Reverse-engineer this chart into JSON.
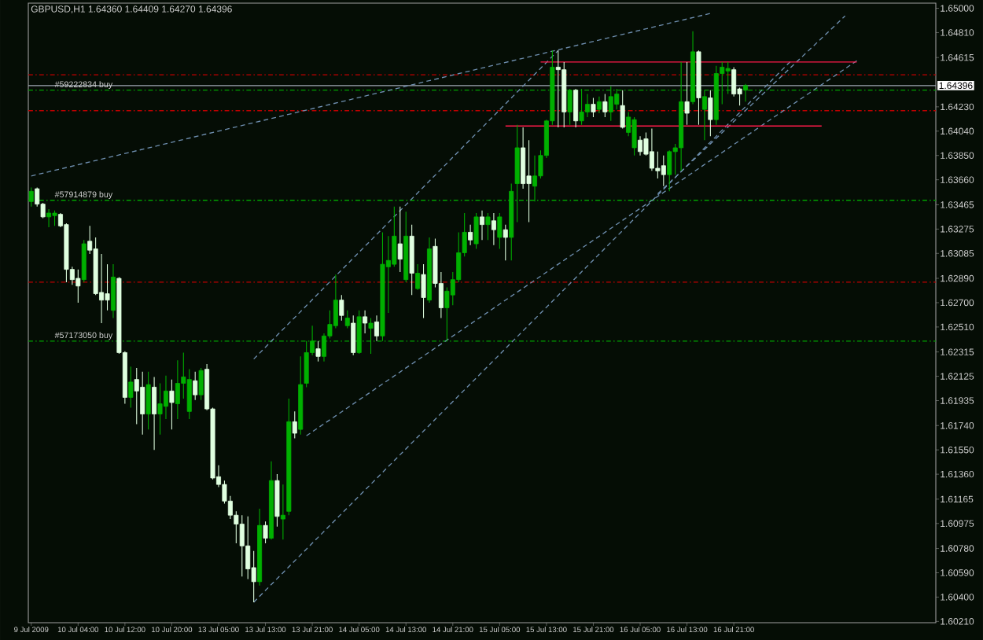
{
  "chart_data": {
    "type": "candlestick",
    "title": "GBPUSD,H1 1.64360 1.64409 1.64270 1.64396",
    "categories": [
      "9 Jul 2009",
      null,
      null,
      null,
      null,
      null,
      null,
      null,
      "10 Jul 04:00",
      null,
      null,
      null,
      null,
      null,
      null,
      null,
      "10 Jul 12:00",
      null,
      null,
      null,
      null,
      null,
      null,
      null,
      "10 Jul 20:00",
      null,
      null,
      null,
      null,
      null,
      null,
      null,
      "13 Jul 05:00",
      null,
      null,
      null,
      null,
      null,
      null,
      null,
      "13 Jul 13:00",
      null,
      null,
      null,
      null,
      null,
      null,
      null,
      "13 Jul 21:00",
      null,
      null,
      null,
      null,
      null,
      null,
      null,
      "14 Jul 05:00",
      null,
      null,
      null,
      null,
      null,
      null,
      null,
      "14 Jul 13:00",
      null,
      null,
      null,
      null,
      null,
      null,
      null,
      "14 Jul 21:00",
      null,
      null,
      null,
      null,
      null,
      null,
      null,
      "15 Jul 05:00",
      null,
      null,
      null,
      null,
      null,
      null,
      null,
      "15 Jul 13:00",
      null,
      null,
      null,
      null,
      null,
      null,
      null,
      "15 Jul 21:00",
      null,
      null,
      null,
      null,
      null,
      null,
      null,
      "16 Jul 05:00",
      null,
      null,
      null,
      null,
      null,
      null,
      null,
      "16 Jul 13:00",
      null,
      null,
      null,
      null,
      null,
      null,
      null,
      "16 Jul 21:00",
      null,
      null,
      null,
      null,
      null,
      null,
      null,
      null,
      null,
      null,
      null,
      null,
      null,
      null,
      null,
      null,
      null,
      null,
      null,
      null,
      null,
      null,
      null,
      null,
      null,
      null,
      null,
      null,
      null,
      null,
      null,
      null,
      null,
      null
    ],
    "ohlc": [
      [
        1.6349,
        1.636,
        1.6345,
        1.6357
      ],
      [
        1.6359,
        1.636,
        1.6345,
        1.6347
      ],
      [
        1.6347,
        1.6348,
        1.6336,
        1.6337
      ],
      [
        1.6337,
        1.6343,
        1.6329,
        1.634
      ],
      [
        1.6338,
        1.6342,
        1.633,
        1.634
      ],
      [
        1.6339,
        1.634,
        1.6329,
        1.633
      ],
      [
        1.6331,
        1.6332,
        1.6286,
        1.6296
      ],
      [
        1.6296,
        1.6298,
        1.6284,
        1.6288
      ],
      [
        1.6289,
        1.6296,
        1.627,
        1.6283
      ],
      [
        1.6288,
        1.6319,
        1.6286,
        1.6316
      ],
      [
        1.6318,
        1.633,
        1.6308,
        1.6311
      ],
      [
        1.6312,
        1.6321,
        1.6276,
        1.6277
      ],
      [
        1.6278,
        1.6308,
        1.6254,
        1.6272
      ],
      [
        1.6277,
        1.63,
        1.6264,
        1.6272
      ],
      [
        1.6264,
        1.63,
        1.6258,
        1.629
      ],
      [
        1.6289,
        1.629,
        1.623,
        1.6231
      ],
      [
        1.6231,
        1.6232,
        1.6191,
        1.6196
      ],
      [
        1.6196,
        1.622,
        1.6188,
        1.6208
      ],
      [
        1.621,
        1.6219,
        1.6175,
        1.6201
      ],
      [
        1.6204,
        1.6216,
        1.6167,
        1.6183
      ],
      [
        1.6183,
        1.6216,
        1.6171,
        1.6206
      ],
      [
        1.6204,
        1.6212,
        1.6155,
        1.6183
      ],
      [
        1.6183,
        1.6207,
        1.6167,
        1.6191
      ],
      [
        1.6189,
        1.6213,
        1.6179,
        1.6201
      ],
      [
        1.6201,
        1.621,
        1.6171,
        1.6192
      ],
      [
        1.6191,
        1.6225,
        1.6179,
        1.6207
      ],
      [
        1.6207,
        1.6231,
        1.6195,
        1.6212
      ],
      [
        1.6185,
        1.6218,
        1.6179,
        1.621
      ],
      [
        1.6209,
        1.6216,
        1.6194,
        1.6198
      ],
      [
        1.6198,
        1.6219,
        1.6194,
        1.6217
      ],
      [
        1.6218,
        1.6222,
        1.6186,
        1.6187
      ],
      [
        1.6187,
        1.6188,
        1.6132,
        1.6133
      ],
      [
        1.6134,
        1.6143,
        1.6126,
        1.6128
      ],
      [
        1.6128,
        1.6131,
        1.6113,
        1.6115
      ],
      [
        1.6115,
        1.6119,
        1.6101,
        1.6104
      ],
      [
        1.6104,
        1.6107,
        1.6082,
        1.6097
      ],
      [
        1.6097,
        1.6104,
        1.6056,
        1.608
      ],
      [
        1.608,
        1.6103,
        1.6054,
        1.6062
      ],
      [
        1.6063,
        1.6076,
        1.6036,
        1.6052
      ],
      [
        1.6052,
        1.6109,
        1.6049,
        1.6096
      ],
      [
        1.6096,
        1.6099,
        1.6082,
        1.6086
      ],
      [
        1.6086,
        1.6146,
        1.6085,
        1.6131
      ],
      [
        1.6131,
        1.6136,
        1.6095,
        1.6103
      ],
      [
        1.6101,
        1.6128,
        1.6085,
        1.6104
      ],
      [
        1.6107,
        1.6195,
        1.6104,
        1.6177
      ],
      [
        1.6177,
        1.6185,
        1.6164,
        1.6168
      ],
      [
        1.6171,
        1.6228,
        1.6167,
        1.6206
      ],
      [
        1.6207,
        1.624,
        1.6204,
        1.6231
      ],
      [
        1.6231,
        1.6252,
        1.6229,
        1.624
      ],
      [
        1.6234,
        1.624,
        1.6224,
        1.6228
      ],
      [
        1.6228,
        1.6246,
        1.6224,
        1.6244
      ],
      [
        1.6244,
        1.6264,
        1.6242,
        1.6253
      ],
      [
        1.6252,
        1.6292,
        1.625,
        1.6272
      ],
      [
        1.6272,
        1.6276,
        1.6256,
        1.626
      ],
      [
        1.6252,
        1.6264,
        1.625,
        1.6258
      ],
      [
        1.6254,
        1.626,
        1.6229,
        1.6231
      ],
      [
        1.6231,
        1.6264,
        1.623,
        1.6259
      ],
      [
        1.6259,
        1.6264,
        1.6246,
        1.6254
      ],
      [
        1.625,
        1.6258,
        1.623,
        1.6254
      ],
      [
        1.6255,
        1.626,
        1.624,
        1.6244
      ],
      [
        1.6244,
        1.6325,
        1.624,
        1.63
      ],
      [
        1.6298,
        1.6322,
        1.6262,
        1.6303
      ],
      [
        1.63,
        1.6345,
        1.6298,
        1.6322
      ],
      [
        1.6316,
        1.6345,
        1.6294,
        1.6304
      ],
      [
        1.6288,
        1.6341,
        1.6286,
        1.6322
      ],
      [
        1.6322,
        1.6331,
        1.6276,
        1.6293
      ],
      [
        1.6281,
        1.63,
        1.628,
        1.6293
      ],
      [
        1.6292,
        1.63,
        1.6258,
        1.6274
      ],
      [
        1.6272,
        1.6321,
        1.627,
        1.6312
      ],
      [
        1.6314,
        1.632,
        1.6282,
        1.6285
      ],
      [
        1.6285,
        1.6294,
        1.6258,
        1.6266
      ],
      [
        1.6266,
        1.6282,
        1.624,
        1.6279
      ],
      [
        1.6276,
        1.6294,
        1.6268,
        1.6288
      ],
      [
        1.6288,
        1.6325,
        1.6286,
        1.6309
      ],
      [
        1.6309,
        1.634,
        1.6306,
        1.6325
      ],
      [
        1.6325,
        1.6331,
        1.6315,
        1.6319
      ],
      [
        1.6316,
        1.634,
        1.6312,
        1.6337
      ],
      [
        1.6337,
        1.6342,
        1.6319,
        1.6331
      ],
      [
        1.6331,
        1.634,
        1.6319,
        1.6337
      ],
      [
        1.6334,
        1.634,
        1.6315,
        1.6327
      ],
      [
        1.6321,
        1.634,
        1.6312,
        1.6337
      ],
      [
        1.6327,
        1.6331,
        1.6303,
        1.6321
      ],
      [
        1.6321,
        1.6363,
        1.6303,
        1.6357
      ],
      [
        1.6363,
        1.6409,
        1.6333,
        1.6391
      ],
      [
        1.6391,
        1.6407,
        1.6359,
        1.6363
      ],
      [
        1.6369,
        1.6397,
        1.6333,
        1.6363
      ],
      [
        1.6361,
        1.6385,
        1.6349,
        1.6369
      ],
      [
        1.6369,
        1.6389,
        1.6367,
        1.6385
      ],
      [
        1.6385,
        1.6413,
        1.6383,
        1.6412
      ],
      [
        1.6412,
        1.6467,
        1.6409,
        1.6454
      ],
      [
        1.6454,
        1.6467,
        1.6407,
        1.6452
      ],
      [
        1.6452,
        1.6458,
        1.6407,
        1.6419
      ],
      [
        1.6419,
        1.6437,
        1.6409,
        1.6436
      ],
      [
        1.6436,
        1.6437,
        1.6407,
        1.6412
      ],
      [
        1.6412,
        1.6437,
        1.6409,
        1.6419
      ],
      [
        1.6419,
        1.6433,
        1.6415,
        1.6425
      ],
      [
        1.6425,
        1.643,
        1.6415,
        1.6419
      ],
      [
        1.6421,
        1.6431,
        1.6418,
        1.6427
      ],
      [
        1.6427,
        1.6433,
        1.6415,
        1.6419
      ],
      [
        1.6419,
        1.6439,
        1.6412,
        1.6431
      ],
      [
        1.6425,
        1.6437,
        1.6421,
        1.6433
      ],
      [
        1.6424,
        1.6436,
        1.6406,
        1.6407
      ],
      [
        1.6403,
        1.6419,
        1.64,
        1.6415
      ],
      [
        1.6391,
        1.6415,
        1.6385,
        1.6413
      ],
      [
        1.6397,
        1.64,
        1.6385,
        1.6388
      ],
      [
        1.6398,
        1.6403,
        1.6385,
        1.6386
      ],
      [
        1.6388,
        1.6406,
        1.6373,
        1.6375
      ],
      [
        1.6375,
        1.6388,
        1.6367,
        1.6373
      ],
      [
        1.6377,
        1.6385,
        1.6361,
        1.637
      ],
      [
        1.637,
        1.6389,
        1.6357,
        1.6388
      ],
      [
        1.6388,
        1.6394,
        1.637,
        1.6391
      ],
      [
        1.6391,
        1.6458,
        1.6373,
        1.6427
      ],
      [
        1.6427,
        1.6458,
        1.6409,
        1.6418
      ],
      [
        1.6427,
        1.6482,
        1.6425,
        1.6466
      ],
      [
        1.6466,
        1.6467,
        1.6409,
        1.643
      ],
      [
        1.6421,
        1.6436,
        1.6397,
        1.6431
      ],
      [
        1.643,
        1.6436,
        1.64,
        1.6413
      ],
      [
        1.6413,
        1.6455,
        1.6409,
        1.6449
      ],
      [
        1.6449,
        1.6458,
        1.6425,
        1.6454
      ],
      [
        1.6451,
        1.6458,
        1.6433,
        1.6453
      ],
      [
        1.6452,
        1.6454,
        1.6431,
        1.6433
      ],
      [
        1.6437,
        1.6438,
        1.6424,
        1.6433
      ],
      [
        1.6436,
        1.64409,
        1.6427,
        1.64396
      ],
      null,
      null,
      null,
      null,
      null,
      null,
      null,
      null,
      null,
      null,
      null,
      null,
      null,
      null,
      null,
      null,
      null,
      null,
      null,
      null,
      null,
      null,
      null,
      null,
      null,
      null,
      null,
      null,
      null,
      null,
      null,
      null
    ],
    "colors": [
      "#00b000",
      "#e0ffe0",
      "#e0ffe0",
      "#00b000",
      "#00b000",
      "#e0ffe0",
      "#e0ffe0",
      "#e0ffe0",
      "#e0ffe0",
      "#00b000",
      "#e0ffe0",
      "#e0ffe0",
      "#e0ffe0",
      "#e0ffe0",
      "#00b000",
      "#e0ffe0",
      "#e0ffe0",
      "#00b000",
      "#e0ffe0",
      "#e0ffe0",
      "#00b000",
      "#e0ffe0",
      "#00b000",
      "#00b000",
      "#e0ffe0",
      "#00b000",
      "#00b000",
      "#00b000",
      "#e0ffe0",
      "#00b000",
      "#e0ffe0",
      "#e0ffe0",
      "#e0ffe0",
      "#e0ffe0",
      "#e0ffe0",
      "#e0ffe0",
      "#e0ffe0",
      "#e0ffe0",
      "#e0ffe0",
      "#00b000",
      "#e0ffe0",
      "#00b000",
      "#e0ffe0",
      "#00b000",
      "#00b000",
      "#e0ffe0",
      "#00b000",
      "#00b000",
      "#00b000",
      "#e0ffe0",
      "#00b000",
      "#00b000",
      "#00b000",
      "#e0ffe0",
      "#00b000",
      "#e0ffe0",
      "#00b000",
      "#e0ffe0",
      "#00b000",
      "#e0ffe0",
      "#00b000",
      "#00b000",
      "#00b000",
      "#e0ffe0",
      "#00b000",
      "#e0ffe0",
      "#00b000",
      "#e0ffe0",
      "#00b000",
      "#e0ffe0",
      "#e0ffe0",
      "#00b000",
      "#00b000",
      "#00b000",
      "#00b000",
      "#e0ffe0",
      "#00b000",
      "#e0ffe0",
      "#00b000",
      "#e0ffe0",
      "#00b000",
      "#e0ffe0",
      "#00b000",
      "#00b000",
      "#e0ffe0",
      "#e0ffe0",
      "#00b000",
      "#00b000",
      "#00b000",
      "#00b000",
      "#e0ffe0",
      "#e0ffe0",
      "#00b000",
      "#e0ffe0",
      "#00b000",
      "#00b000",
      "#e0ffe0",
      "#00b000",
      "#e0ffe0",
      "#00b000",
      "#00b000",
      "#e0ffe0",
      "#00b000",
      "#00b000",
      "#e0ffe0",
      "#e0ffe0",
      "#e0ffe0",
      "#e0ffe0",
      "#e0ffe0",
      "#00b000",
      "#00b000",
      "#00b000",
      "#e0ffe0",
      "#00b000",
      "#e0ffe0",
      "#00b000",
      "#e0ffe0",
      "#00b000",
      "#00b000",
      "#00b000",
      "#e0ffe0",
      "#e0ffe0",
      "#00b000",
      null,
      null,
      null,
      null,
      null,
      null,
      null,
      null,
      null,
      null,
      null,
      null,
      null,
      null,
      null,
      null,
      null,
      null,
      null,
      null,
      null,
      null,
      null,
      null,
      null,
      null,
      null,
      null,
      null,
      null,
      null,
      null
    ],
    "ylim": [
      1.602,
      1.6504
    ],
    "yticks": [
      {
        "value": 1.65,
        "label": "1.65000"
      },
      {
        "value": 1.6481,
        "label": "1.64810"
      },
      {
        "value": 1.64615,
        "label": "1.64615"
      },
      {
        "value": 1.6423,
        "label": "1.64230"
      },
      {
        "value": 1.6404,
        "label": "1.64040"
      },
      {
        "value": 1.6385,
        "label": "1.63850"
      },
      {
        "value": 1.6366,
        "label": "1.63660"
      },
      {
        "value": 1.63465,
        "label": "1.63465"
      },
      {
        "value": 1.63275,
        "label": "1.63275"
      },
      {
        "value": 1.63085,
        "label": "1.63085"
      },
      {
        "value": 1.6289,
        "label": "1.62890"
      },
      {
        "value": 1.627,
        "label": "1.62700"
      },
      {
        "value": 1.6251,
        "label": "1.62510"
      },
      {
        "value": 1.62315,
        "label": "1.62315"
      },
      {
        "value": 1.62125,
        "label": "1.62125"
      },
      {
        "value": 1.61935,
        "label": "1.61935"
      },
      {
        "value": 1.6174,
        "label": "1.61740"
      },
      {
        "value": 1.6155,
        "label": "1.61550"
      },
      {
        "value": 1.6136,
        "label": "1.61360"
      },
      {
        "value": 1.61165,
        "label": "1.61165"
      },
      {
        "value": 1.60975,
        "label": "1.60975"
      },
      {
        "value": 1.6078,
        "label": "1.60780"
      },
      {
        "value": 1.6059,
        "label": "1.60590"
      },
      {
        "value": 1.604,
        "label": "1.60400"
      },
      {
        "value": 1.6021,
        "label": "1.60210"
      }
    ],
    "ref_lines": [
      {
        "axis": "y",
        "value": 1.6448,
        "color": "#c00000",
        "line_style": "dashed"
      },
      {
        "axis": "y",
        "value": 1.64396,
        "label": "1.64396",
        "color": "#a0a8b4",
        "line_style": "solid"
      },
      {
        "axis": "y",
        "value": 1.6436,
        "label": "#59222834 buy",
        "color": "#00a000",
        "line_style": "dashed"
      },
      {
        "axis": "y",
        "value": 1.642,
        "color": "#c00000",
        "line_style": "dashed"
      },
      {
        "axis": "y",
        "value": 1.635,
        "label": "#57914879 buy",
        "color": "#00a000",
        "line_style": "dashed"
      },
      {
        "axis": "y",
        "value": 1.6286,
        "color": "#c00000",
        "line_style": "dashed"
      },
      {
        "axis": "y",
        "value": 1.624,
        "label": "#57173050 buy",
        "color": "#00a000",
        "line_style": "dashed"
      }
    ],
    "series": [
      {
        "type": "line",
        "color": "#6f8fb0",
        "line_style": "dashed",
        "values": [
          1.6369,
          null,
          null,
          null,
          null,
          null,
          null,
          null,
          null,
          null,
          null,
          null,
          null,
          null,
          null,
          null,
          null,
          null,
          null,
          null,
          null,
          null,
          null,
          null,
          null,
          null,
          null,
          null,
          null,
          null,
          null,
          null,
          null,
          null,
          null,
          null,
          null,
          null,
          null,
          null,
          null,
          null,
          null,
          null,
          null,
          null,
          null,
          null,
          null,
          null,
          null,
          null,
          null,
          null,
          null,
          null,
          null,
          null,
          null,
          null,
          null,
          null,
          null,
          null,
          null,
          null,
          null,
          null,
          null,
          null,
          null,
          null,
          null,
          null,
          null,
          null,
          null,
          null,
          null,
          null,
          null,
          null,
          null,
          null,
          null,
          null,
          null,
          null,
          null,
          null,
          null,
          null,
          null,
          null,
          null,
          null,
          null,
          null,
          null,
          null,
          null,
          null,
          null,
          null,
          null,
          null,
          null,
          null,
          null,
          null,
          null,
          null,
          null,
          null,
          null,
          null,
          1.6496,
          null,
          null,
          null,
          null,
          null,
          null,
          null,
          null,
          null,
          null,
          null,
          null,
          null,
          null,
          null,
          null,
          null,
          null,
          null,
          null,
          null,
          null,
          null,
          null,
          null,
          null,
          null,
          null,
          null,
          null,
          null,
          null,
          null,
          null,
          null,
          null,
          null,
          null
        ]
      },
      {
        "type": "line",
        "color": "#6f8fb0",
        "line_style": "dashed",
        "values": [
          null,
          null,
          null,
          null,
          null,
          null,
          null,
          null,
          null,
          null,
          null,
          null,
          null,
          null,
          null,
          null,
          null,
          null,
          null,
          null,
          null,
          null,
          null,
          null,
          null,
          null,
          null,
          null,
          null,
          null,
          null,
          null,
          null,
          null,
          null,
          null,
          null,
          null,
          1.6226,
          null,
          null,
          null,
          null,
          null,
          null,
          null,
          null,
          null,
          null,
          null,
          null,
          null,
          null,
          null,
          null,
          null,
          null,
          null,
          null,
          null,
          null,
          null,
          null,
          null,
          null,
          null,
          null,
          null,
          null,
          null,
          null,
          null,
          null,
          null,
          null,
          null,
          null,
          null,
          null,
          null,
          null,
          null,
          null,
          null,
          null,
          null,
          null,
          null,
          null,
          null,
          1.6467,
          null,
          null,
          null,
          null,
          null,
          null,
          null,
          null,
          null,
          null,
          null,
          null,
          null,
          null,
          null,
          null,
          null,
          null,
          null,
          null,
          null,
          null,
          null,
          null,
          null,
          null,
          null,
          null,
          null,
          null,
          null,
          null,
          null,
          null,
          null,
          null,
          null,
          null,
          null,
          null,
          null,
          null,
          null,
          null,
          null,
          null,
          null,
          null,
          null,
          null,
          null,
          null,
          null,
          null,
          null,
          null,
          null,
          null,
          null,
          null,
          null,
          null,
          null,
          null
        ]
      },
      {
        "type": "line",
        "color": "#6f8fb0",
        "line_style": "dashed",
        "values": [
          null,
          null,
          null,
          null,
          null,
          null,
          null,
          null,
          null,
          null,
          null,
          null,
          null,
          null,
          null,
          null,
          null,
          null,
          null,
          null,
          null,
          null,
          null,
          null,
          null,
          null,
          null,
          null,
          null,
          null,
          null,
          null,
          null,
          null,
          null,
          null,
          null,
          null,
          1.6036,
          null,
          null,
          null,
          null,
          null,
          null,
          null,
          null,
          null,
          null,
          null,
          null,
          null,
          null,
          null,
          null,
          null,
          null,
          null,
          null,
          null,
          null,
          null,
          null,
          null,
          null,
          null,
          null,
          null,
          null,
          null,
          null,
          null,
          null,
          null,
          null,
          null,
          null,
          null,
          null,
          null,
          null,
          null,
          null,
          null,
          null,
          null,
          null,
          null,
          null,
          null,
          null,
          null,
          null,
          null,
          null,
          null,
          null,
          null,
          null,
          null,
          null,
          null,
          null,
          null,
          null,
          null,
          null,
          null,
          null,
          null,
          null,
          null,
          null,
          null,
          null,
          null,
          null,
          null,
          null,
          null,
          null,
          null,
          null,
          null,
          null,
          null,
          null,
          null,
          null,
          null,
          1.646,
          null,
          null,
          null,
          null,
          null,
          null,
          null,
          null,
          null,
          null,
          null,
          null,
          null,
          null,
          null,
          null,
          null,
          null,
          null,
          null,
          null,
          null,
          null,
          null
        ]
      },
      {
        "type": "line",
        "color": "#6f8fb0",
        "line_style": "dashed",
        "values": [
          null,
          null,
          null,
          null,
          null,
          null,
          null,
          null,
          null,
          null,
          null,
          null,
          null,
          null,
          null,
          null,
          null,
          null,
          null,
          null,
          null,
          null,
          null,
          null,
          null,
          null,
          null,
          null,
          null,
          null,
          null,
          null,
          null,
          null,
          null,
          null,
          null,
          null,
          null,
          null,
          null,
          null,
          null,
          null,
          null,
          null,
          null,
          1.6166,
          null,
          null,
          null,
          null,
          null,
          null,
          null,
          null,
          null,
          null,
          null,
          null,
          null,
          null,
          null,
          null,
          null,
          null,
          null,
          null,
          null,
          null,
          null,
          null,
          null,
          null,
          null,
          null,
          null,
          null,
          null,
          null,
          null,
          null,
          null,
          null,
          null,
          null,
          null,
          null,
          null,
          null,
          null,
          null,
          null,
          null,
          null,
          null,
          null,
          null,
          null,
          null,
          null,
          null,
          null,
          null,
          null,
          null,
          null,
          null,
          null,
          null,
          null,
          null,
          null,
          null,
          null,
          null,
          null,
          null,
          null,
          null,
          null,
          null,
          null,
          null,
          null,
          null,
          null,
          null,
          null,
          null,
          null,
          null,
          null,
          null,
          null,
          null,
          null,
          null,
          null,
          null,
          null,
          1.6459,
          null,
          null,
          null,
          null,
          null,
          null,
          null,
          null,
          null,
          null,
          null,
          null,
          null
        ]
      },
      {
        "type": "line",
        "color": "#6f8fb0",
        "line_style": "dashed",
        "values": [
          null,
          null,
          null,
          null,
          null,
          null,
          null,
          null,
          null,
          null,
          null,
          null,
          null,
          null,
          null,
          null,
          null,
          null,
          null,
          null,
          null,
          null,
          null,
          null,
          null,
          null,
          null,
          null,
          null,
          null,
          null,
          null,
          null,
          null,
          null,
          null,
          null,
          null,
          null,
          null,
          null,
          null,
          null,
          null,
          null,
          null,
          null,
          null,
          null,
          null,
          null,
          null,
          null,
          null,
          null,
          null,
          null,
          null,
          null,
          null,
          null,
          null,
          null,
          null,
          null,
          null,
          null,
          null,
          null,
          null,
          null,
          null,
          null,
          null,
          null,
          null,
          null,
          null,
          null,
          null,
          null,
          null,
          null,
          null,
          null,
          null,
          null,
          null,
          null,
          null,
          null,
          null,
          null,
          null,
          null,
          null,
          null,
          null,
          null,
          null,
          null,
          null,
          null,
          null,
          null,
          null,
          null,
          1.6355,
          null,
          null,
          null,
          null,
          null,
          null,
          null,
          null,
          null,
          null,
          null,
          null,
          null,
          null,
          null,
          null,
          null,
          null,
          null,
          null,
          null,
          null,
          null,
          null,
          null,
          null,
          null,
          null,
          null,
          null,
          null,
          1.6494,
          null,
          null,
          null,
          null,
          null,
          null,
          null,
          null,
          null,
          null,
          null,
          null,
          null,
          null,
          null
        ]
      },
      {
        "type": "line",
        "color": "#ff1a4a",
        "line_style": "solid",
        "values": [
          null,
          null,
          null,
          null,
          null,
          null,
          null,
          null,
          null,
          null,
          null,
          null,
          null,
          null,
          null,
          null,
          null,
          null,
          null,
          null,
          null,
          null,
          null,
          null,
          null,
          null,
          null,
          null,
          null,
          null,
          null,
          null,
          null,
          null,
          null,
          null,
          null,
          null,
          null,
          null,
          null,
          null,
          null,
          null,
          null,
          null,
          null,
          null,
          null,
          null,
          null,
          null,
          null,
          null,
          null,
          null,
          null,
          null,
          null,
          null,
          null,
          null,
          null,
          null,
          null,
          null,
          null,
          null,
          null,
          null,
          null,
          null,
          null,
          null,
          null,
          null,
          null,
          null,
          null,
          null,
          null,
          null,
          null,
          null,
          null,
          null,
          null,
          1.6458,
          null,
          null,
          null,
          null,
          null,
          null,
          null,
          null,
          null,
          null,
          null,
          null,
          null,
          null,
          null,
          null,
          null,
          null,
          null,
          null,
          null,
          null,
          null,
          null,
          null,
          null,
          null,
          null,
          null,
          null,
          null,
          null,
          null,
          null,
          null,
          null,
          null,
          null,
          null,
          null,
          null,
          null,
          null,
          null,
          null,
          null,
          null,
          null,
          null,
          null,
          null,
          null,
          null,
          1.6458,
          null,
          null,
          null,
          null,
          null,
          null,
          null,
          null,
          null,
          null,
          null,
          null,
          null
        ]
      },
      {
        "type": "line",
        "color": "#ff1a4a",
        "line_style": "solid",
        "values": [
          null,
          null,
          null,
          null,
          null,
          null,
          null,
          null,
          null,
          null,
          null,
          null,
          null,
          null,
          null,
          null,
          null,
          null,
          null,
          null,
          null,
          null,
          null,
          null,
          null,
          null,
          null,
          null,
          null,
          null,
          null,
          null,
          null,
          null,
          null,
          null,
          null,
          null,
          null,
          null,
          null,
          null,
          null,
          null,
          null,
          null,
          null,
          null,
          null,
          null,
          null,
          null,
          null,
          null,
          null,
          null,
          null,
          null,
          null,
          null,
          null,
          null,
          null,
          null,
          null,
          null,
          null,
          null,
          null,
          null,
          null,
          null,
          null,
          null,
          null,
          null,
          null,
          null,
          null,
          null,
          null,
          1.6408,
          null,
          null,
          null,
          null,
          null,
          null,
          null,
          null,
          null,
          null,
          null,
          null,
          null,
          null,
          null,
          null,
          null,
          null,
          null,
          null,
          null,
          null,
          null,
          null,
          null,
          null,
          null,
          null,
          null,
          null,
          null,
          null,
          null,
          null,
          null,
          null,
          null,
          null,
          null,
          null,
          null,
          null,
          null,
          null,
          null,
          null,
          null,
          null,
          null,
          null,
          null,
          null,
          null,
          1.6408,
          null,
          null,
          null,
          null,
          null,
          null,
          null,
          null,
          null,
          null,
          null,
          null,
          null,
          null,
          null,
          null,
          null,
          null,
          null
        ]
      }
    ]
  }
}
